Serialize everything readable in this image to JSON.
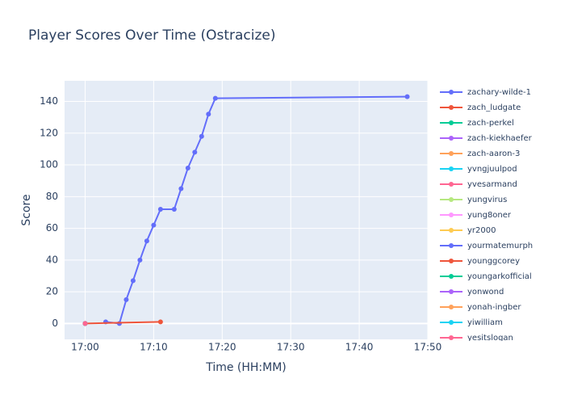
{
  "chart_data": {
    "type": "line",
    "title": "Player Scores Over Time (Ostracize)",
    "x_label": "Time (HH:MM)",
    "y_label": "Score",
    "xlim": [
      "16:57",
      "17:50"
    ],
    "xticks": [
      "17:00",
      "17:10",
      "17:20",
      "17:30",
      "17:40",
      "17:50"
    ],
    "ylim": [
      -10,
      153
    ],
    "yticks": [
      0,
      20,
      40,
      60,
      80,
      100,
      120,
      140
    ],
    "grid": true,
    "legend": "right",
    "series": [
      {
        "name": "zachary-wilde-1",
        "color": "#636efa",
        "x": [
          "17:03",
          "17:05",
          "17:06",
          "17:07",
          "17:08",
          "17:09",
          "17:10",
          "17:11",
          "17:13",
          "17:14",
          "17:15",
          "17:16",
          "17:17",
          "17:18",
          "17:19",
          "17:47"
        ],
        "values": [
          1,
          0,
          15,
          27,
          40,
          52,
          62,
          72,
          72,
          85,
          98,
          108,
          118,
          132,
          142,
          143
        ]
      },
      {
        "name": "zach_ludgate",
        "color": "#EF553B",
        "x": [
          "17:00",
          "17:11"
        ],
        "values": [
          0,
          1
        ]
      },
      {
        "name": "zach-perkel",
        "color": "#00cc96",
        "x": [
          "17:00"
        ],
        "values": [
          0
        ]
      },
      {
        "name": "zach-kiekhaefer",
        "color": "#ab63fa",
        "x": [
          "17:00"
        ],
        "values": [
          0
        ]
      },
      {
        "name": "zach-aaron-3",
        "color": "#FFA15A",
        "x": [
          "17:00"
        ],
        "values": [
          0
        ]
      },
      {
        "name": "yvngjuulpod",
        "color": "#19d3f3",
        "x": [
          "17:00"
        ],
        "values": [
          0
        ]
      },
      {
        "name": "yvesarmand",
        "color": "#FF6692",
        "x": [
          "17:00"
        ],
        "values": [
          0
        ]
      },
      {
        "name": "yungvirus",
        "color": "#B6E880",
        "x": [
          "17:00"
        ],
        "values": [
          0
        ]
      },
      {
        "name": "yung8oner",
        "color": "#FF97FF",
        "x": [
          "17:00"
        ],
        "values": [
          0
        ]
      },
      {
        "name": "yr2000",
        "color": "#FECB52",
        "x": [
          "17:00"
        ],
        "values": [
          0
        ]
      },
      {
        "name": "yourmatemurph",
        "color": "#636efa",
        "x": [
          "17:00"
        ],
        "values": [
          0
        ]
      },
      {
        "name": "younggcorey",
        "color": "#EF553B",
        "x": [
          "17:00"
        ],
        "values": [
          0
        ]
      },
      {
        "name": "youngarkofficial",
        "color": "#00cc96",
        "x": [
          "17:00"
        ],
        "values": [
          0
        ]
      },
      {
        "name": "yonwond",
        "color": "#ab63fa",
        "x": [
          "17:00"
        ],
        "values": [
          0
        ]
      },
      {
        "name": "yonah-ingber",
        "color": "#FFA15A",
        "x": [
          "17:00"
        ],
        "values": [
          0
        ]
      },
      {
        "name": "yiwilliam",
        "color": "#19d3f3",
        "x": [
          "17:00"
        ],
        "values": [
          0
        ]
      },
      {
        "name": "yesitslogan",
        "color": "#FF6692",
        "x": [
          "17:00"
        ],
        "values": [
          0
        ]
      }
    ]
  }
}
